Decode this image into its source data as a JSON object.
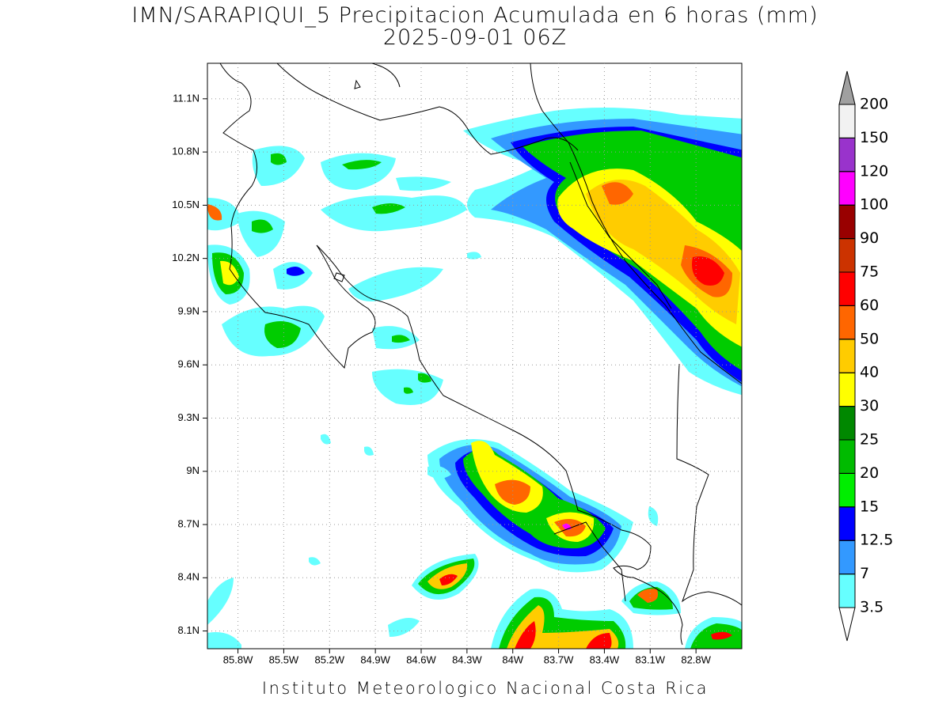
{
  "title": "IMN/SARAPIQUI_5 Precipitacion Acumulada en 6 horas (mm)",
  "subtitle": "2025-09-01 06Z",
  "footer": "Instituto Meteorologico Nacional Costa Rica",
  "map": {
    "xlim": [
      -86.0,
      -82.5
    ],
    "ylim": [
      8.0,
      11.3
    ],
    "grid": true,
    "xticks": [
      {
        "value": -85.8,
        "label": "85.8W"
      },
      {
        "value": -85.5,
        "label": "85.5W"
      },
      {
        "value": -85.2,
        "label": "85.2W"
      },
      {
        "value": -84.9,
        "label": "84.9W"
      },
      {
        "value": -84.6,
        "label": "84.6W"
      },
      {
        "value": -84.3,
        "label": "84.3W"
      },
      {
        "value": -84.0,
        "label": "84W"
      },
      {
        "value": -83.7,
        "label": "83.7W"
      },
      {
        "value": -83.4,
        "label": "83.4W"
      },
      {
        "value": -83.1,
        "label": "83.1W"
      },
      {
        "value": -82.8,
        "label": "82.8W"
      }
    ],
    "yticks": [
      {
        "value": 8.1,
        "label": "8.1N"
      },
      {
        "value": 8.4,
        "label": "8.4N"
      },
      {
        "value": 8.7,
        "label": "8.7N"
      },
      {
        "value": 9.0,
        "label": "9N"
      },
      {
        "value": 9.3,
        "label": "9.3N"
      },
      {
        "value": 9.6,
        "label": "9.6N"
      },
      {
        "value": 9.9,
        "label": "9.9N"
      },
      {
        "value": 10.2,
        "label": "10.2N"
      },
      {
        "value": 10.5,
        "label": "10.5N"
      },
      {
        "value": 10.8,
        "label": "10.8N"
      },
      {
        "value": 11.1,
        "label": "11.1N"
      }
    ]
  },
  "colorbar": {
    "levels": [
      3.5,
      7,
      12.5,
      15,
      20,
      25,
      30,
      40,
      50,
      60,
      75,
      90,
      100,
      120,
      150,
      200
    ],
    "colors": [
      "#66ffff",
      "#3399ff",
      "#0000ff",
      "#00ee00",
      "#00bb00",
      "#008800",
      "#ffff00",
      "#ffcc00",
      "#ff6600",
      "#ff0000",
      "#cc3300",
      "#990000",
      "#ff00ff",
      "#9933cc",
      "#f2f2f2"
    ],
    "under_color": "#ffffff",
    "over_color": "#a0a0a0"
  }
}
